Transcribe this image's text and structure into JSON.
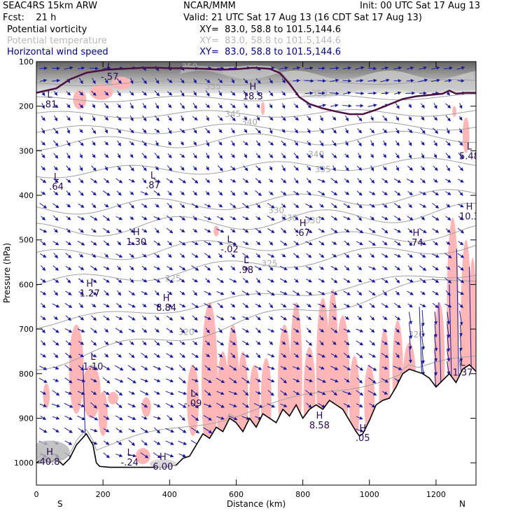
{
  "header": {
    "model": "SEAC4RS 15km ARW",
    "center": "NCAR/MMM",
    "init": "Init: 00 UTC Sat 17 Aug 13",
    "fcst": "Fcst:    21 h",
    "valid": "Valid: 21 UTC Sat 17 Aug 13 (16 CDT Sat 17 Aug 13)"
  },
  "legend": [
    {
      "label": "Potential vorticity",
      "xy": "XY=  83.0, 58.8 to 101.5,144.6",
      "color": "#000000"
    },
    {
      "label": "Potential temperature",
      "xy": "XY=  83.0, 58.8 to 101.5,144.6",
      "color": "#b8b8b8"
    },
    {
      "label": "Horizontal wind speed",
      "xy": "XY=  83.0, 58.8 to 101.5,144.6",
      "color": "#000080"
    }
  ],
  "chart_data": {
    "type": "cross-section",
    "xlabel": "Distance (km)",
    "ylabel": "Pressure (hPa)",
    "xlim": [
      0,
      1320
    ],
    "ylim": [
      1050,
      100
    ],
    "x_ticks": [
      0,
      200,
      400,
      600,
      800,
      1000,
      1200
    ],
    "y_ticks": [
      100,
      200,
      300,
      400,
      500,
      600,
      700,
      800,
      900,
      1000
    ],
    "end_labels": {
      "left": "S",
      "right": "N"
    },
    "tropopause_line": [
      [
        0,
        170
      ],
      [
        30,
        165
      ],
      [
        60,
        160
      ],
      [
        100,
        140
      ],
      [
        150,
        125
      ],
      [
        210,
        118
      ],
      [
        260,
        116
      ],
      [
        320,
        114
      ],
      [
        370,
        114
      ],
      [
        400,
        115
      ],
      [
        450,
        115
      ],
      [
        500,
        116
      ],
      [
        550,
        118
      ],
      [
        600,
        117
      ],
      [
        650,
        114
      ],
      [
        700,
        116
      ],
      [
        730,
        125
      ],
      [
        760,
        150
      ],
      [
        790,
        180
      ],
      [
        820,
        195
      ],
      [
        860,
        205
      ],
      [
        900,
        212
      ],
      [
        940,
        218
      ],
      [
        980,
        218
      ],
      [
        1020,
        208
      ],
      [
        1060,
        196
      ],
      [
        1100,
        184
      ],
      [
        1140,
        178
      ],
      [
        1180,
        175
      ],
      [
        1220,
        172
      ],
      [
        1240,
        165
      ],
      [
        1260,
        172
      ],
      [
        1290,
        170
      ],
      [
        1320,
        170
      ]
    ],
    "terrain": [
      [
        0,
        1000
      ],
      [
        20,
        990
      ],
      [
        40,
        1000
      ],
      [
        60,
        990
      ],
      [
        80,
        1005
      ],
      [
        100,
        990
      ],
      [
        120,
        960
      ],
      [
        150,
        935
      ],
      [
        170,
        960
      ],
      [
        180,
        1000
      ],
      [
        190,
        1008
      ],
      [
        220,
        1010
      ],
      [
        260,
        1010
      ],
      [
        300,
        1010
      ],
      [
        340,
        1010
      ],
      [
        380,
        1010
      ],
      [
        420,
        1005
      ],
      [
        440,
        990
      ],
      [
        460,
        985
      ],
      [
        480,
        960
      ],
      [
        500,
        935
      ],
      [
        520,
        945
      ],
      [
        540,
        920
      ],
      [
        560,
        930
      ],
      [
        580,
        900
      ],
      [
        600,
        910
      ],
      [
        620,
        930
      ],
      [
        640,
        900
      ],
      [
        660,
        920
      ],
      [
        680,
        890
      ],
      [
        700,
        900
      ],
      [
        720,
        910
      ],
      [
        740,
        880
      ],
      [
        760,
        895
      ],
      [
        780,
        870
      ],
      [
        800,
        900
      ],
      [
        820,
        880
      ],
      [
        840,
        870
      ],
      [
        860,
        880
      ],
      [
        880,
        860
      ],
      [
        900,
        870
      ],
      [
        920,
        880
      ],
      [
        940,
        905
      ],
      [
        960,
        930
      ],
      [
        970,
        940
      ],
      [
        980,
        935
      ],
      [
        1000,
        905
      ],
      [
        1020,
        870
      ],
      [
        1040,
        860
      ],
      [
        1060,
        855
      ],
      [
        1080,
        830
      ],
      [
        1100,
        800
      ],
      [
        1120,
        790
      ],
      [
        1140,
        795
      ],
      [
        1160,
        800
      ],
      [
        1180,
        810
      ],
      [
        1200,
        830
      ],
      [
        1220,
        815
      ],
      [
        1240,
        800
      ],
      [
        1260,
        820
      ],
      [
        1280,
        790
      ],
      [
        1300,
        780
      ],
      [
        1320,
        795
      ]
    ],
    "isentrope_labels": [
      {
        "text": "350",
        "x": 460,
        "p": 118
      },
      {
        "text": "355",
        "x": 530,
        "p": 162
      },
      {
        "text": "350",
        "x": 850,
        "p": 178
      },
      {
        "text": "345",
        "x": 590,
        "p": 224
      },
      {
        "text": "340",
        "x": 640,
        "p": 242
      },
      {
        "text": "340",
        "x": 840,
        "p": 314
      },
      {
        "text": "335",
        "x": 860,
        "p": 348
      },
      {
        "text": "330",
        "x": 720,
        "p": 440
      },
      {
        "text": "330",
        "x": 760,
        "p": 457
      },
      {
        "text": "330",
        "x": 830,
        "p": 463
      },
      {
        "text": "325",
        "x": 700,
        "p": 559
      },
      {
        "text": "325",
        "x": 410,
        "p": 593
      },
      {
        "text": "320",
        "x": 450,
        "p": 713
      },
      {
        "text": "320",
        "x": 1140,
        "p": 719
      }
    ],
    "hl_labels": [
      {
        "letter": "L",
        "value": "-.57",
        "x": 220,
        "p": 138
      },
      {
        "letter": "L",
        "value": ".81",
        "x": 40,
        "p": 200
      },
      {
        "letter": "H",
        "value": "18.3",
        "x": 650,
        "p": 182
      },
      {
        "letter": "L",
        "value": "5.48",
        "x": 1300,
        "p": 316
      },
      {
        "letter": "L",
        "value": ".64",
        "x": 60,
        "p": 384
      },
      {
        "letter": "L",
        "value": ".87",
        "x": 350,
        "p": 381
      },
      {
        "letter": "H",
        "value": "10.3",
        "x": 1300,
        "p": 451
      },
      {
        "letter": "H",
        "value": ".67",
        "x": 800,
        "p": 488
      },
      {
        "letter": "H",
        "value": "1.30",
        "x": 300,
        "p": 508
      },
      {
        "letter": "H",
        "value": ".74",
        "x": 1140,
        "p": 510
      },
      {
        "letter": "L",
        "value": "-.02",
        "x": 580,
        "p": 525
      },
      {
        "letter": "L",
        "value": ".98",
        "x": 630,
        "p": 571
      },
      {
        "letter": "H",
        "value": "1.27",
        "x": 160,
        "p": 624
      },
      {
        "letter": "H",
        "value": "8.84",
        "x": 390,
        "p": 656
      },
      {
        "letter": "L",
        "value": "1.10",
        "x": 170,
        "p": 788
      },
      {
        "letter": "L",
        "value": "1.37",
        "x": 1280,
        "p": 801
      },
      {
        "letter": "L",
        "value": "-.09",
        "x": 470,
        "p": 870
      },
      {
        "letter": "H",
        "value": "8.58",
        "x": 850,
        "p": 920
      },
      {
        "letter": "H",
        "value": ".05",
        "x": 980,
        "p": 948
      },
      {
        "letter": "H",
        "value": "40.8",
        "x": 40,
        "p": 1001
      },
      {
        "letter": "L",
        "value": "-.24",
        "x": 280,
        "p": 1003
      },
      {
        "letter": "H",
        "value": "6.00",
        "x": 380,
        "p": 1012
      }
    ]
  }
}
